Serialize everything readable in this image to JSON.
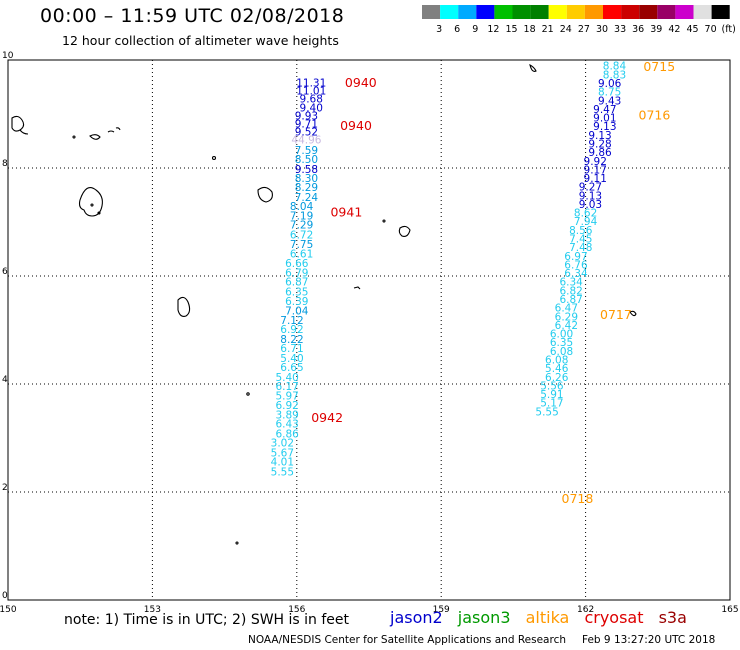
{
  "header": {
    "title": "00:00 – 11:59 UTC 02/08/2018",
    "subtitle": "12 hour collection of altimeter wave heights"
  },
  "colorbar": {
    "colors": [
      "#808080",
      "#00ffff",
      "#00aaff",
      "#0000ff",
      "#00c000",
      "#009000",
      "#008000",
      "#ffff00",
      "#ffcc00",
      "#ff9900",
      "#ff0000",
      "#cc0000",
      "#990000",
      "#990066",
      "#cc00cc",
      "#e0e0e0",
      "#000000"
    ],
    "labels": [
      "3",
      "6",
      "9",
      "12",
      "15",
      "18",
      "21",
      "24",
      "27",
      "30",
      "33",
      "36",
      "39",
      "42",
      "45",
      "70",
      "(ft)"
    ]
  },
  "axes": {
    "x_ticks": [
      "150",
      "153",
      "156",
      "159",
      "162",
      "165"
    ],
    "y_ticks": [
      "0",
      "2",
      "4",
      "6",
      "8",
      "10"
    ],
    "xlim": [
      150,
      165
    ],
    "ylim": [
      0,
      10
    ]
  },
  "footer": {
    "note": "note: 1) Time is in UTC; 2) SWH is in feet",
    "legend": [
      {
        "name": "jason2",
        "color": "#0000cc"
      },
      {
        "name": "jason3",
        "color": "#009900"
      },
      {
        "name": "altika",
        "color": "#ff9900"
      },
      {
        "name": "cryosat",
        "color": "#dd0000"
      },
      {
        "name": "s3a",
        "color": "#990000"
      }
    ],
    "credit": "NOAA/NESDIS Center for Satellite Applications and Research",
    "generated": "Feb  9 13:27:20 UTC 2018"
  },
  "chart_data": {
    "type": "scatter",
    "xlim": [
      150,
      165
    ],
    "ylim": [
      0,
      10
    ],
    "grid": true,
    "tracks": [
      {
        "name": "cryosat",
        "time_color": "#dd0000",
        "times": [
          {
            "label": "0940",
            "x": 157.0,
            "y": 9.5
          },
          {
            "label": "0940",
            "x": 156.9,
            "y": 8.7
          },
          {
            "label": "0941",
            "x": 156.7,
            "y": 7.1
          },
          {
            "label": "0942",
            "x": 156.3,
            "y": 3.3
          }
        ],
        "points": [
          {
            "v": "11.31",
            "x": 156.3,
            "y": 9.51,
            "color": "#0000cc"
          },
          {
            "v": "11.01",
            "x": 156.3,
            "y": 9.36,
            "color": "#0000cc"
          },
          {
            "v": "9.68",
            "x": 156.3,
            "y": 9.21,
            "color": "#0000cc"
          },
          {
            "v": "9.40",
            "x": 156.3,
            "y": 9.05,
            "color": "#0000cc"
          },
          {
            "v": "9.93",
            "x": 156.2,
            "y": 8.9,
            "color": "#0000cc"
          },
          {
            "v": "9.71",
            "x": 156.2,
            "y": 8.75,
            "color": "#0000cc"
          },
          {
            "v": "9.52",
            "x": 156.2,
            "y": 8.6,
            "color": "#0000cc"
          },
          {
            "v": "44.96",
            "x": 156.2,
            "y": 8.45,
            "color": "#c8b8e0"
          },
          {
            "v": "7.59",
            "x": 156.2,
            "y": 8.26,
            "color": "#0099dd"
          },
          {
            "v": "8.50",
            "x": 156.2,
            "y": 8.09,
            "color": "#0099dd"
          },
          {
            "v": "9.58",
            "x": 156.2,
            "y": 7.91,
            "color": "#0000cc"
          },
          {
            "v": "8.30",
            "x": 156.2,
            "y": 7.74,
            "color": "#0099dd"
          },
          {
            "v": "8.29",
            "x": 156.2,
            "y": 7.57,
            "color": "#0099dd"
          },
          {
            "v": "7.24",
            "x": 156.2,
            "y": 7.39,
            "color": "#0099dd"
          },
          {
            "v": "8.04",
            "x": 156.1,
            "y": 7.22,
            "color": "#0099dd"
          },
          {
            "v": "7.19",
            "x": 156.1,
            "y": 7.05,
            "color": "#0099dd"
          },
          {
            "v": "7.29",
            "x": 156.1,
            "y": 6.88,
            "color": "#0099dd"
          },
          {
            "v": "6.72",
            "x": 156.1,
            "y": 6.69,
            "color": "#22ccee"
          },
          {
            "v": "7.75",
            "x": 156.1,
            "y": 6.52,
            "color": "#0099dd"
          },
          {
            "v": "6.61",
            "x": 156.1,
            "y": 6.34,
            "color": "#22ccee"
          },
          {
            "v": "6.66",
            "x": 156.0,
            "y": 6.17,
            "color": "#22ccee"
          },
          {
            "v": "6.79",
            "x": 156.0,
            "y": 5.99,
            "color": "#22ccee"
          },
          {
            "v": "6.87",
            "x": 156.0,
            "y": 5.82,
            "color": "#22ccee"
          },
          {
            "v": "6.35",
            "x": 156.0,
            "y": 5.64,
            "color": "#22ccee"
          },
          {
            "v": "6.39",
            "x": 156.0,
            "y": 5.46,
            "color": "#22ccee"
          },
          {
            "v": "7.04",
            "x": 156.0,
            "y": 5.29,
            "color": "#0099dd"
          },
          {
            "v": "7.12",
            "x": 155.9,
            "y": 5.11,
            "color": "#0099dd"
          },
          {
            "v": "6.92",
            "x": 155.9,
            "y": 4.94,
            "color": "#22ccee"
          },
          {
            "v": "8.22",
            "x": 155.9,
            "y": 4.76,
            "color": "#0099dd"
          },
          {
            "v": "6.71",
            "x": 155.9,
            "y": 4.59,
            "color": "#22ccee"
          },
          {
            "v": "5.40",
            "x": 155.9,
            "y": 4.41,
            "color": "#22ccee"
          },
          {
            "v": "6.65",
            "x": 155.9,
            "y": 4.24,
            "color": "#22ccee"
          },
          {
            "v": "5.40",
            "x": 155.8,
            "y": 4.06,
            "color": "#22ccee"
          },
          {
            "v": "6.17",
            "x": 155.8,
            "y": 3.89,
            "color": "#22ccee"
          },
          {
            "v": "5.97",
            "x": 155.8,
            "y": 3.71,
            "color": "#22ccee"
          },
          {
            "v": "6.92",
            "x": 155.8,
            "y": 3.54,
            "color": "#22ccee"
          },
          {
            "v": "3.89",
            "x": 155.8,
            "y": 3.36,
            "color": "#22ccee"
          },
          {
            "v": "6.43",
            "x": 155.8,
            "y": 3.19,
            "color": "#22ccee"
          },
          {
            "v": "6.86",
            "x": 155.8,
            "y": 3.01,
            "color": "#22ccee"
          },
          {
            "v": "3.02",
            "x": 155.7,
            "y": 2.84,
            "color": "#22ccee"
          },
          {
            "v": "5.67",
            "x": 155.7,
            "y": 2.66,
            "color": "#22ccee"
          },
          {
            "v": "4.01",
            "x": 155.7,
            "y": 2.49,
            "color": "#22ccee"
          },
          {
            "v": "5.55",
            "x": 155.7,
            "y": 2.31,
            "color": "#22ccee"
          }
        ]
      },
      {
        "name": "altika",
        "time_color": "#ff9900",
        "times": [
          {
            "label": "0715",
            "x": 163.2,
            "y": 9.8
          },
          {
            "label": "0716",
            "x": 163.1,
            "y": 8.9
          },
          {
            "label": "0717",
            "x": 162.3,
            "y": 5.2
          },
          {
            "label": "0718",
            "x": 161.5,
            "y": 1.8
          }
        ],
        "points": [
          {
            "v": "8.84",
            "x": 162.6,
            "y": 9.82,
            "color": "#22ccee"
          },
          {
            "v": "8.83",
            "x": 162.6,
            "y": 9.66,
            "color": "#22ccee"
          },
          {
            "v": "9.06",
            "x": 162.5,
            "y": 9.5,
            "color": "#0000cc"
          },
          {
            "v": "8.75",
            "x": 162.5,
            "y": 9.34,
            "color": "#22ccee"
          },
          {
            "v": "9.43",
            "x": 162.5,
            "y": 9.18,
            "color": "#0000cc"
          },
          {
            "v": "9.47",
            "x": 162.4,
            "y": 9.02,
            "color": "#0000cc"
          },
          {
            "v": "9.01",
            "x": 162.4,
            "y": 8.86,
            "color": "#0000cc"
          },
          {
            "v": "9.13",
            "x": 162.4,
            "y": 8.7,
            "color": "#0000cc"
          },
          {
            "v": "9.13",
            "x": 162.3,
            "y": 8.54,
            "color": "#0000cc"
          },
          {
            "v": "9.28",
            "x": 162.3,
            "y": 8.38,
            "color": "#0000cc"
          },
          {
            "v": "9.86",
            "x": 162.3,
            "y": 8.22,
            "color": "#0000cc"
          },
          {
            "v": "9.92",
            "x": 162.2,
            "y": 8.06,
            "color": "#0000cc"
          },
          {
            "v": "9.17",
            "x": 162.2,
            "y": 7.9,
            "color": "#0000cc"
          },
          {
            "v": "9.11",
            "x": 162.2,
            "y": 7.74,
            "color": "#0000cc"
          },
          {
            "v": "9.27",
            "x": 162.1,
            "y": 7.58,
            "color": "#0000cc"
          },
          {
            "v": "9.13",
            "x": 162.1,
            "y": 7.42,
            "color": "#0000cc"
          },
          {
            "v": "9.03",
            "x": 162.1,
            "y": 7.26,
            "color": "#0000cc"
          },
          {
            "v": "8.62",
            "x": 162.0,
            "y": 7.1,
            "color": "#22ccee"
          },
          {
            "v": "7.94",
            "x": 162.0,
            "y": 6.94,
            "color": "#22ccee"
          },
          {
            "v": "8.56",
            "x": 161.9,
            "y": 6.78,
            "color": "#22ccee"
          },
          {
            "v": "7.45",
            "x": 161.9,
            "y": 6.62,
            "color": "#22ccee"
          },
          {
            "v": "7.48",
            "x": 161.9,
            "y": 6.46,
            "color": "#22ccee"
          },
          {
            "v": "6.97",
            "x": 161.8,
            "y": 6.3,
            "color": "#22ccee"
          },
          {
            "v": "6.76",
            "x": 161.8,
            "y": 6.14,
            "color": "#22ccee"
          },
          {
            "v": "6.34",
            "x": 161.8,
            "y": 5.98,
            "color": "#22ccee"
          },
          {
            "v": "6.34",
            "x": 161.7,
            "y": 5.82,
            "color": "#22ccee"
          },
          {
            "v": "6.82",
            "x": 161.7,
            "y": 5.66,
            "color": "#22ccee"
          },
          {
            "v": "6.87",
            "x": 161.7,
            "y": 5.5,
            "color": "#22ccee"
          },
          {
            "v": "6.47",
            "x": 161.6,
            "y": 5.34,
            "color": "#22ccee"
          },
          {
            "v": "6.29",
            "x": 161.6,
            "y": 5.18,
            "color": "#22ccee"
          },
          {
            "v": "6.42",
            "x": 161.6,
            "y": 5.02,
            "color": "#22ccee"
          },
          {
            "v": "6.00",
            "x": 161.5,
            "y": 4.86,
            "color": "#22ccee"
          },
          {
            "v": "6.35",
            "x": 161.5,
            "y": 4.7,
            "color": "#22ccee"
          },
          {
            "v": "6.08",
            "x": 161.5,
            "y": 4.54,
            "color": "#22ccee"
          },
          {
            "v": "6.08",
            "x": 161.4,
            "y": 4.38,
            "color": "#22ccee"
          },
          {
            "v": "5.46",
            "x": 161.4,
            "y": 4.22,
            "color": "#22ccee"
          },
          {
            "v": "6.26",
            "x": 161.4,
            "y": 4.06,
            "color": "#22ccee"
          },
          {
            "v": "5.56",
            "x": 161.3,
            "y": 3.9,
            "color": "#22ccee"
          },
          {
            "v": "5.91",
            "x": 161.3,
            "y": 3.74,
            "color": "#22ccee"
          },
          {
            "v": "5.17",
            "x": 161.3,
            "y": 3.58,
            "color": "#22ccee"
          },
          {
            "v": "5.55",
            "x": 161.2,
            "y": 3.42,
            "color": "#22ccee"
          }
        ]
      }
    ]
  }
}
